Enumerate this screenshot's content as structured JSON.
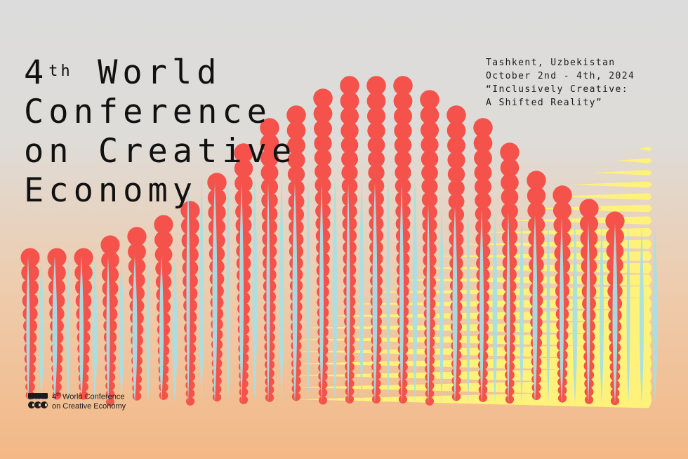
{
  "headline": {
    "line1_number": "4",
    "line1_sup": "th",
    "line1_rest": " World",
    "line2": "Conference",
    "line3": "on Creative",
    "line4": "Economy"
  },
  "info": {
    "location": "Tashkent, Uzbekistan",
    "dates": "October 2nd - 4th, 2024",
    "theme_line1": "“Inclusively Creative:",
    "theme_line2": "A Shifted Reality”"
  },
  "logo": {
    "number": "4",
    "sup": "th",
    "line1_rest": " World Conference",
    "line2": "on Creative Economy"
  },
  "colors": {
    "red": "#f4524a",
    "blue": "#a9dfe3",
    "yellow": "#fff27a",
    "text": "#151515"
  }
}
